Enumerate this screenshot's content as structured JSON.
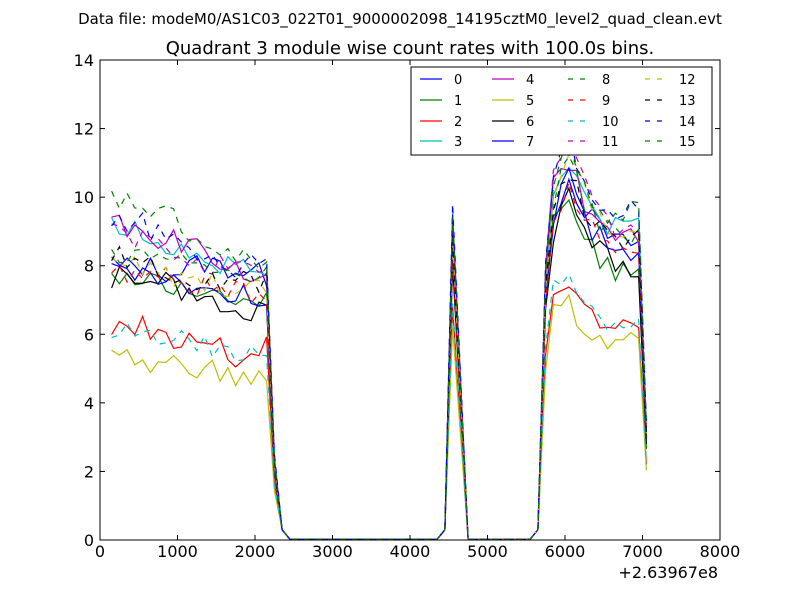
{
  "figure": {
    "suptitle": "Data file: modeM0/AS1C03_022T01_9000002098_14195cztM0_level2_quad_clean.evt"
  },
  "chart_data": {
    "type": "line",
    "title": "Quadrant 3 module wise count rates with 100.0s bins.",
    "xlabel": "",
    "ylabel": "",
    "xlim": [
      0,
      8000
    ],
    "ylim": [
      0,
      14
    ],
    "x_offset_label": "+2.63967e8",
    "xticks": [
      0,
      1000,
      2000,
      3000,
      4000,
      5000,
      6000,
      7000,
      8000
    ],
    "yticks": [
      0,
      2,
      4,
      6,
      8,
      10,
      12,
      14
    ],
    "grid": false,
    "legend_position": "top-right",
    "legend_columns": 4,
    "x": [
      150,
      250,
      350,
      450,
      550,
      650,
      750,
      850,
      950,
      1050,
      1150,
      1250,
      1350,
      1450,
      1550,
      1650,
      1750,
      1850,
      1950,
      2050,
      2150,
      2250,
      2350,
      2450,
      2550,
      2650,
      2750,
      2850,
      2950,
      3050,
      3150,
      3250,
      3350,
      3450,
      3550,
      3650,
      3750,
      3850,
      3950,
      4050,
      4150,
      4250,
      4350,
      4450,
      4550,
      4650,
      4750,
      4850,
      4950,
      5050,
      5150,
      5250,
      5350,
      5450,
      5550,
      5650,
      5750,
      5850,
      5950,
      6050,
      6150,
      6250,
      6350,
      6450,
      6550,
      6650,
      6750,
      6850,
      6950,
      7050
    ],
    "series": [
      {
        "name": "0",
        "color": "#0000ff",
        "dash": "solid",
        "level": [
          7.9,
          8.0,
          7.8,
          8.1,
          7.9,
          7.7
        ],
        "peak1": 9.5,
        "late": [
          9.5,
          10.6,
          9.8,
          9.2,
          8.8,
          8.6,
          8.7
        ]
      },
      {
        "name": "1",
        "color": "#007f00",
        "dash": "solid",
        "level": [
          7.8,
          7.5,
          7.3,
          7.4,
          6.7,
          7.2
        ],
        "peak1": 8.6,
        "late": [
          9.6,
          10.1,
          9.0,
          8.4,
          7.8,
          7.8,
          7.6
        ]
      },
      {
        "name": "2",
        "color": "#ff0000",
        "dash": "solid",
        "level": [
          6.2,
          6.3,
          5.8,
          5.9,
          5.3,
          5.6
        ],
        "peak1": 6.8,
        "late": [
          7.2,
          7.6,
          6.9,
          6.5,
          6.1,
          6.2,
          6.3
        ]
      },
      {
        "name": "3",
        "color": "#00bfbf",
        "dash": "solid",
        "level": [
          9.1,
          9.0,
          8.6,
          8.2,
          8.0,
          7.8
        ],
        "peak1": 9.0,
        "late": [
          10.0,
          11.2,
          10.0,
          9.6,
          9.1,
          9.1,
          9.2
        ]
      },
      {
        "name": "4",
        "color": "#bf00bf",
        "dash": "solid",
        "level": [
          9.3,
          9.0,
          8.7,
          8.5,
          7.8,
          7.5
        ],
        "peak1": 9.3,
        "late": [
          10.4,
          11.2,
          10.0,
          9.4,
          8.9,
          8.8,
          8.9
        ]
      },
      {
        "name": "5",
        "color": "#bfbf00",
        "dash": "solid",
        "level": [
          5.6,
          5.0,
          5.1,
          5.0,
          4.6,
          4.8
        ],
        "peak1": 6.2,
        "late": [
          6.6,
          6.9,
          6.2,
          5.9,
          5.7,
          5.7,
          5.8
        ]
      },
      {
        "name": "6",
        "color": "#000000",
        "dash": "solid",
        "level": [
          7.6,
          7.7,
          7.4,
          7.0,
          6.5,
          6.7
        ],
        "peak1": 8.0,
        "late": [
          9.0,
          10.1,
          9.2,
          8.6,
          8.2,
          8.0,
          8.0
        ]
      },
      {
        "name": "7",
        "color": "#0000ff",
        "dash": "solid",
        "level": [
          8.0,
          7.9,
          7.6,
          7.2,
          7.2,
          7.1
        ],
        "peak1": 8.5,
        "late": [
          9.4,
          10.8,
          9.5,
          8.9,
          8.5,
          8.4,
          8.4
        ]
      },
      {
        "name": "8",
        "color": "#007f00",
        "dash": "dashed",
        "level": [
          8.4,
          8.2,
          8.1,
          7.8,
          7.7,
          7.9
        ],
        "peak1": 8.8,
        "late": [
          9.8,
          11.2,
          10.1,
          9.3,
          8.9,
          8.8,
          8.8
        ]
      },
      {
        "name": "9",
        "color": "#ff0000",
        "dash": "dashed",
        "level": [
          7.9,
          7.8,
          7.6,
          7.4,
          7.2,
          7.3
        ],
        "peak1": 8.2,
        "late": [
          9.3,
          10.5,
          9.6,
          9.0,
          8.6,
          8.5,
          8.5
        ]
      },
      {
        "name": "10",
        "color": "#00bfbf",
        "dash": "dashed",
        "level": [
          6.2,
          6.0,
          5.9,
          5.6,
          5.3,
          5.4
        ],
        "peak1": 6.9,
        "late": [
          7.5,
          7.9,
          7.0,
          6.6,
          6.3,
          6.2,
          6.3
        ]
      },
      {
        "name": "11",
        "color": "#bf00bf",
        "dash": "dashed",
        "level": [
          9.0,
          8.7,
          8.4,
          8.1,
          7.9,
          7.6
        ],
        "peak1": 9.1,
        "late": [
          10.6,
          12.0,
          10.6,
          9.8,
          9.2,
          9.1,
          9.2
        ]
      },
      {
        "name": "12",
        "color": "#bfbf00",
        "dash": "dashed",
        "level": [
          8.2,
          7.9,
          7.6,
          7.5,
          7.4,
          7.3
        ],
        "peak1": 8.7,
        "late": [
          9.7,
          11.6,
          10.2,
          9.5,
          9.0,
          8.9,
          8.9
        ]
      },
      {
        "name": "13",
        "color": "#000000",
        "dash": "dashed",
        "level": [
          8.3,
          8.0,
          7.8,
          7.6,
          7.5,
          7.6
        ],
        "peak1": 8.9,
        "late": [
          9.9,
          10.9,
          9.7,
          9.1,
          8.7,
          8.6,
          8.7
        ]
      },
      {
        "name": "14",
        "color": "#0000ff",
        "dash": "dashed",
        "level": [
          9.5,
          9.2,
          8.6,
          8.3,
          8.0,
          8.4
        ],
        "peak1": 9.8,
        "late": [
          10.8,
          11.8,
          10.6,
          10.0,
          9.6,
          9.6,
          9.7
        ]
      },
      {
        "name": "15",
        "color": "#007f00",
        "dash": "dashed",
        "level": [
          10.0,
          9.8,
          9.4,
          8.6,
          8.2,
          8.0
        ],
        "peak1": 9.4,
        "late": [
          10.4,
          11.6,
          10.4,
          9.9,
          9.5,
          9.5,
          9.6
        ]
      }
    ]
  }
}
